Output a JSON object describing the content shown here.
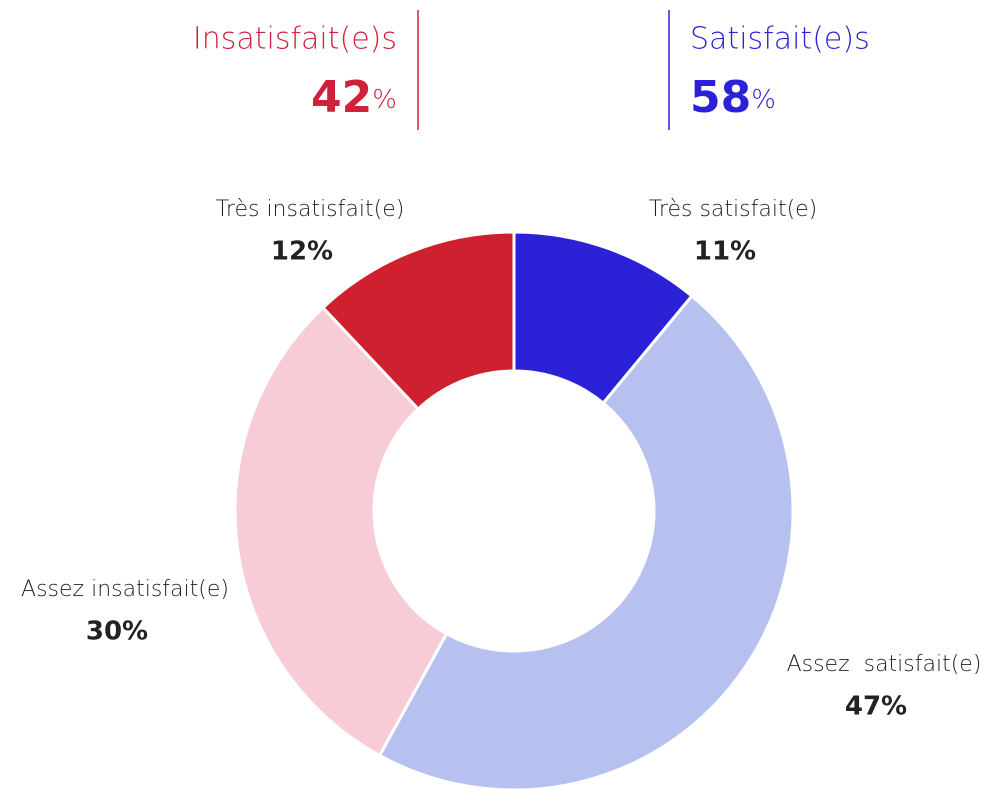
{
  "chart_data": {
    "type": "donut",
    "summary": [
      {
        "label": "Insatisfait(e)s",
        "value": 42,
        "unit": "%",
        "color": "#d0213a"
      },
      {
        "label": "Satisfait(e)s",
        "value": 58,
        "unit": "%",
        "color": "#2b22d8"
      }
    ],
    "categories": [
      "Très satisfait(e)",
      "Assez  satisfait(e)",
      "Assez insatisfait(e)",
      "Très insatisfait(e)"
    ],
    "values": [
      11,
      47,
      30,
      12
    ],
    "value_labels": [
      "11%",
      "47%",
      "30%",
      "12%"
    ],
    "colors": [
      "#2b22d8",
      "#b7c1f0",
      "#f7ccd7",
      "#cf2030"
    ]
  }
}
